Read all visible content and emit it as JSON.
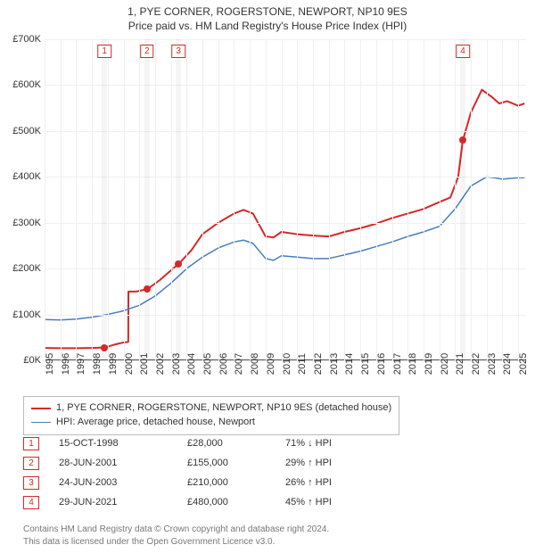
{
  "title_line1": "1, PYE CORNER, ROGERSTONE, NEWPORT, NP10 9ES",
  "title_line2": "Price paid vs. HM Land Registry's House Price Index (HPI)",
  "title_fontsize": 12,
  "chart": {
    "type": "line",
    "background_color": "#ffffff",
    "grid_color": "#f0f0f0",
    "axis_color": "#555555",
    "x": {
      "min": 1995,
      "max": 2025.5,
      "ticks": [
        1995,
        1996,
        1997,
        1998,
        1999,
        2000,
        2001,
        2002,
        2003,
        2004,
        2005,
        2006,
        2007,
        2008,
        2009,
        2010,
        2011,
        2012,
        2013,
        2014,
        2015,
        2016,
        2017,
        2018,
        2019,
        2020,
        2021,
        2022,
        2023,
        2024,
        2025
      ],
      "label_fontsize": 11
    },
    "y": {
      "min": 0,
      "max": 700000,
      "tick_step": 100000,
      "tick_prefix": "£",
      "tick_suffix": "K",
      "label_fontsize": 11
    },
    "series": [
      {
        "id": "subject",
        "label": "1, PYE CORNER, ROGERSTONE, NEWPORT, NP10 9ES (detached house)",
        "color": "#d62728",
        "line_width": 2,
        "points": [
          [
            1995.0,
            27000
          ],
          [
            1996.0,
            26500
          ],
          [
            1997.0,
            26500
          ],
          [
            1998.0,
            27000
          ],
          [
            1998.79,
            28000
          ],
          [
            1998.8,
            28000
          ],
          [
            1999.5,
            35000
          ],
          [
            2000.0,
            39000
          ],
          [
            2000.3,
            40000
          ],
          [
            2000.31,
            150000
          ],
          [
            2000.8,
            150000
          ],
          [
            2001.49,
            155000
          ],
          [
            2001.5,
            155000
          ],
          [
            2002.3,
            175000
          ],
          [
            2002.8,
            190000
          ],
          [
            2003.48,
            210000
          ],
          [
            2003.49,
            210000
          ],
          [
            2004.3,
            240000
          ],
          [
            2005.0,
            275000
          ],
          [
            2006.0,
            300000
          ],
          [
            2007.0,
            320000
          ],
          [
            2007.6,
            328000
          ],
          [
            2008.2,
            320000
          ],
          [
            2009.0,
            270000
          ],
          [
            2009.5,
            268000
          ],
          [
            2010.0,
            280000
          ],
          [
            2011.0,
            275000
          ],
          [
            2012.0,
            272000
          ],
          [
            2013.0,
            270000
          ],
          [
            2014.0,
            280000
          ],
          [
            2015.0,
            288000
          ],
          [
            2016.0,
            298000
          ],
          [
            2017.0,
            310000
          ],
          [
            2018.0,
            320000
          ],
          [
            2019.0,
            330000
          ],
          [
            2020.0,
            345000
          ],
          [
            2020.7,
            355000
          ],
          [
            2021.2,
            400000
          ],
          [
            2021.49,
            480000
          ],
          [
            2021.5,
            480000
          ],
          [
            2022.0,
            540000
          ],
          [
            2022.7,
            590000
          ],
          [
            2023.3,
            575000
          ],
          [
            2023.8,
            560000
          ],
          [
            2024.3,
            565000
          ],
          [
            2025.0,
            555000
          ],
          [
            2025.4,
            560000
          ]
        ]
      },
      {
        "id": "hpi",
        "label": "HPI: Average price, detached house, Newport",
        "color": "#4a7ebb",
        "line_width": 1.5,
        "points": [
          [
            1995.0,
            89000
          ],
          [
            1996.0,
            88000
          ],
          [
            1997.0,
            90000
          ],
          [
            1998.0,
            94000
          ],
          [
            1999.0,
            100000
          ],
          [
            2000.0,
            108000
          ],
          [
            2001.0,
            120000
          ],
          [
            2002.0,
            140000
          ],
          [
            2003.0,
            168000
          ],
          [
            2004.0,
            200000
          ],
          [
            2005.0,
            225000
          ],
          [
            2006.0,
            245000
          ],
          [
            2007.0,
            258000
          ],
          [
            2007.6,
            262000
          ],
          [
            2008.2,
            255000
          ],
          [
            2009.0,
            222000
          ],
          [
            2009.5,
            218000
          ],
          [
            2010.0,
            228000
          ],
          [
            2011.0,
            225000
          ],
          [
            2012.0,
            222000
          ],
          [
            2013.0,
            222000
          ],
          [
            2014.0,
            230000
          ],
          [
            2015.0,
            238000
          ],
          [
            2016.0,
            248000
          ],
          [
            2017.0,
            258000
          ],
          [
            2018.0,
            270000
          ],
          [
            2019.0,
            280000
          ],
          [
            2020.0,
            292000
          ],
          [
            2021.0,
            330000
          ],
          [
            2022.0,
            380000
          ],
          [
            2023.0,
            400000
          ],
          [
            2023.5,
            398000
          ],
          [
            2024.0,
            395000
          ],
          [
            2025.0,
            398000
          ],
          [
            2025.4,
            398000
          ]
        ]
      }
    ],
    "transactions": [
      {
        "n": "1",
        "date": "15-OCT-1998",
        "year": 1998.79,
        "price": 28000,
        "price_str": "£28,000",
        "delta": "71% ↓ HPI"
      },
      {
        "n": "2",
        "date": "28-JUN-2001",
        "year": 2001.49,
        "price": 155000,
        "price_str": "£155,000",
        "delta": "29% ↑ HPI"
      },
      {
        "n": "3",
        "date": "24-JUN-2003",
        "year": 2003.48,
        "price": 210000,
        "price_str": "£210,000",
        "delta": "26% ↑ HPI"
      },
      {
        "n": "4",
        "date": "29-JUN-2021",
        "year": 2021.49,
        "price": 480000,
        "price_str": "£480,000",
        "delta": "45% ↑ HPI"
      }
    ],
    "transaction_marker": {
      "color": "#d62728",
      "radius": 4,
      "band_color": "rgba(0,0,0,0.04)",
      "band_width_years": 0.35,
      "badge_border": "#d62728",
      "badge_text": "#d62728"
    }
  },
  "legend": {
    "border_color": "#bbbbbb",
    "fontsize": 11
  },
  "footer_line1": "Contains HM Land Registry data © Crown copyright and database right 2024.",
  "footer_line2": "This data is licensed under the Open Government Licence v3.0.",
  "footer_color": "#777777"
}
